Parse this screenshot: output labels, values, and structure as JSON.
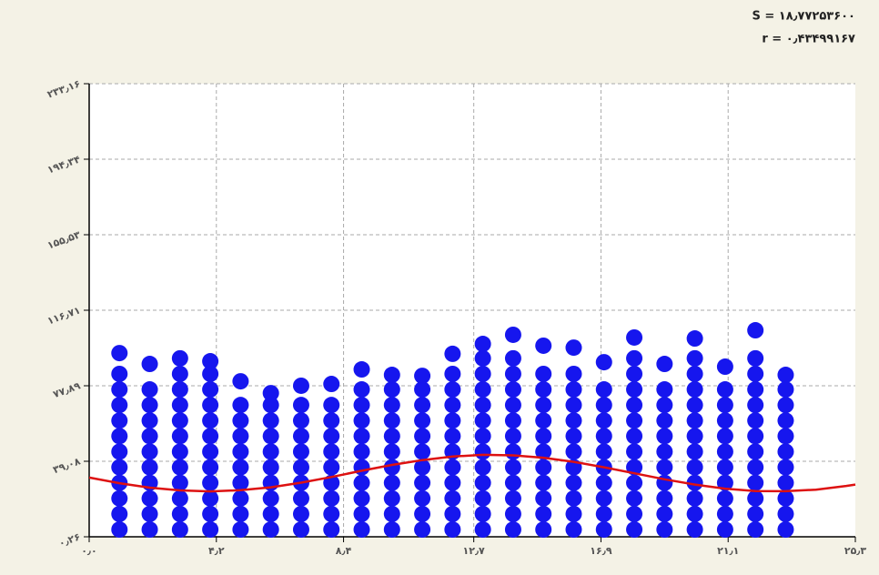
{
  "chart_data": {
    "type": "scatter",
    "annotations": [
      "S = ۱۸٫۷۷۲۵۳۶۰۰",
      "r = ۰٫۴۳۴۹۹۱۶۷"
    ],
    "color": "#1616ee",
    "xlim": [
      0,
      25.3
    ],
    "ylim": [
      0.26,
      233.16
    ],
    "grid": true,
    "xticks": [
      {
        "value": 0,
        "label": "۰٫۰"
      },
      {
        "value": 4.2,
        "label": "۴٫۲"
      },
      {
        "value": 8.4,
        "label": "۸٫۴"
      },
      {
        "value": 12.7,
        "label": "۱۲٫۷"
      },
      {
        "value": 16.9,
        "label": "۱۶٫۹"
      },
      {
        "value": 21.1,
        "label": "۲۱٫۱"
      },
      {
        "value": 25.3,
        "label": "۲۵٫۳"
      }
    ],
    "yticks": [
      {
        "value": 0.26,
        "label": "۰٫۲۶"
      },
      {
        "value": 39.08,
        "label": "۳۹٫۰۸"
      },
      {
        "value": 77.89,
        "label": "۷۷٫۸۹"
      },
      {
        "value": 116.71,
        "label": "۱۱۶٫۷۱"
      },
      {
        "value": 155.53,
        "label": "۱۵۵٫۵۳"
      },
      {
        "value": 194.34,
        "label": "۱۹۴٫۳۴"
      },
      {
        "value": 233.16,
        "label": "۲۳۳٫۱۶"
      }
    ],
    "series": [
      {
        "x": 1,
        "values": [
          4,
          12,
          20,
          28,
          36,
          44,
          52,
          60,
          68,
          76,
          84,
          94.7
        ]
      },
      {
        "x": 2,
        "values": [
          4,
          12,
          20,
          28,
          36,
          44,
          52,
          60,
          68,
          76,
          89.1
        ]
      },
      {
        "x": 3,
        "values": [
          4,
          12,
          20,
          28,
          36,
          44,
          52,
          60,
          68,
          76,
          84,
          92
        ]
      },
      {
        "x": 4,
        "values": [
          4,
          12,
          20,
          28,
          36,
          44,
          52,
          60,
          68,
          76,
          84,
          90.5
        ]
      },
      {
        "x": 5,
        "values": [
          4,
          12,
          20,
          28,
          36,
          44,
          52,
          60,
          68,
          80.2
        ]
      },
      {
        "x": 6,
        "values": [
          4,
          12,
          20,
          28,
          36,
          44,
          52,
          60,
          68,
          74.1
        ]
      },
      {
        "x": 7,
        "values": [
          4,
          12,
          20,
          28,
          36,
          44,
          52,
          60,
          68,
          77.9
        ]
      },
      {
        "x": 8,
        "values": [
          4,
          12,
          20,
          28,
          36,
          44,
          52,
          60,
          68,
          78.8
        ]
      },
      {
        "x": 9,
        "values": [
          4,
          12,
          20,
          28,
          36,
          44,
          52,
          60,
          68,
          76,
          86.3
        ]
      },
      {
        "x": 10,
        "values": [
          4,
          12,
          20,
          28,
          36,
          44,
          52,
          60,
          68,
          76,
          83.5
        ]
      },
      {
        "x": 11,
        "values": [
          4,
          12,
          20,
          28,
          36,
          44,
          52,
          60,
          68,
          76,
          83
        ]
      },
      {
        "x": 12,
        "values": [
          4,
          12,
          20,
          28,
          36,
          44,
          52,
          60,
          68,
          76,
          84,
          94.3
        ]
      },
      {
        "x": 13,
        "values": [
          4,
          12,
          20,
          28,
          36,
          44,
          52,
          60,
          68,
          76,
          84,
          92,
          99.4
        ]
      },
      {
        "x": 14,
        "values": [
          4,
          12,
          20,
          28,
          36,
          44,
          52,
          60,
          68,
          76,
          84,
          92,
          104.1
        ]
      },
      {
        "x": 15,
        "values": [
          4,
          12,
          20,
          28,
          36,
          44,
          52,
          60,
          68,
          76,
          84,
          98.5
        ]
      },
      {
        "x": 16,
        "values": [
          4,
          12,
          20,
          28,
          36,
          44,
          52,
          60,
          68,
          76,
          84,
          97.5
        ]
      },
      {
        "x": 17,
        "values": [
          4,
          12,
          20,
          28,
          36,
          44,
          52,
          60,
          68,
          76,
          90
        ]
      },
      {
        "x": 18,
        "values": [
          4,
          12,
          20,
          28,
          36,
          44,
          52,
          60,
          68,
          76,
          84,
          92,
          102.7
        ]
      },
      {
        "x": 19,
        "values": [
          4,
          12,
          20,
          28,
          36,
          44,
          52,
          60,
          68,
          76,
          89.1
        ]
      },
      {
        "x": 20,
        "values": [
          4,
          12,
          20,
          28,
          36,
          44,
          52,
          60,
          68,
          76,
          84,
          92,
          102.2
        ]
      },
      {
        "x": 21,
        "values": [
          4,
          12,
          20,
          28,
          36,
          44,
          52,
          60,
          68,
          76,
          87.7
        ]
      },
      {
        "x": 22,
        "values": [
          4,
          12,
          20,
          28,
          36,
          44,
          52,
          60,
          68,
          76,
          84,
          92,
          106.4
        ]
      },
      {
        "x": 23,
        "values": [
          4,
          12,
          20,
          28,
          36,
          44,
          52,
          60,
          68,
          76,
          83.5
        ]
      }
    ],
    "line": {
      "color": "#dd1111",
      "x": [
        0,
        1,
        2,
        3,
        4,
        5,
        6,
        7,
        8,
        9,
        10,
        11,
        12,
        13,
        14,
        15,
        16,
        17,
        18,
        19,
        20,
        21,
        22,
        23,
        24,
        25,
        25.3
      ],
      "y": [
        30.7,
        27.8,
        25.5,
        24.1,
        23.6,
        24.2,
        25.7,
        28.1,
        31.0,
        34.2,
        37.2,
        39.7,
        41.5,
        42.4,
        42.1,
        40.9,
        38.8,
        36.0,
        32.9,
        29.8,
        27.1,
        25.0,
        23.8,
        23.7,
        24.5,
        26.4,
        27.1
      ]
    }
  }
}
